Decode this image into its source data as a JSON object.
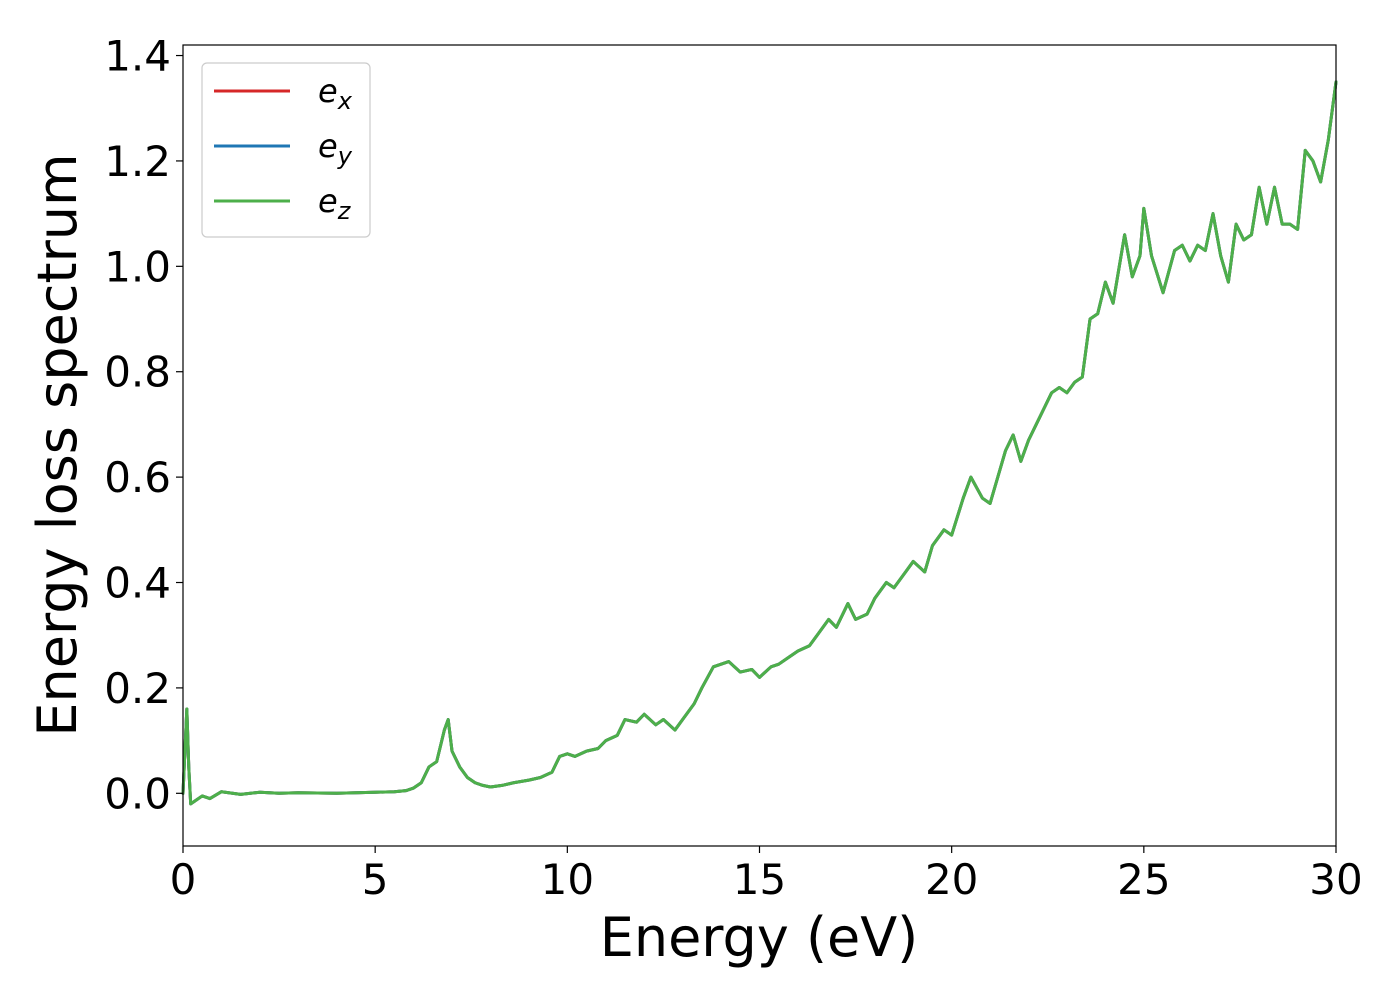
{
  "chart_data": {
    "type": "line",
    "title": "",
    "xlabel": "Energy (eV)",
    "ylabel": "Energy loss spectrum",
    "xlim": [
      0,
      30
    ],
    "ylim": [
      -0.1,
      1.42
    ],
    "xticks": [
      0,
      5,
      10,
      15,
      20,
      25,
      30
    ],
    "xtick_labels": [
      "0",
      "5",
      "10",
      "15",
      "20",
      "25",
      "30"
    ],
    "yticks": [
      0.0,
      0.2,
      0.4,
      0.6,
      0.8,
      1.0,
      1.2,
      1.4
    ],
    "ytick_labels": [
      "0.0",
      "0.2",
      "0.4",
      "0.6",
      "0.8",
      "1.0",
      "1.2",
      "1.4"
    ],
    "grid": false,
    "legend_position": "top-left",
    "x": [
      0.0,
      0.1,
      0.15,
      0.2,
      0.3,
      0.5,
      0.7,
      1.0,
      1.5,
      2.0,
      2.5,
      3.0,
      4.0,
      5.0,
      5.5,
      5.8,
      6.0,
      6.2,
      6.4,
      6.6,
      6.8,
      6.9,
      7.0,
      7.2,
      7.4,
      7.6,
      7.8,
      8.0,
      8.3,
      8.6,
      9.0,
      9.3,
      9.6,
      9.8,
      10.0,
      10.2,
      10.5,
      10.8,
      11.0,
      11.3,
      11.5,
      11.8,
      12.0,
      12.3,
      12.5,
      12.8,
      13.0,
      13.3,
      13.5,
      13.8,
      14.0,
      14.2,
      14.5,
      14.8,
      15.0,
      15.3,
      15.5,
      15.8,
      16.0,
      16.3,
      16.5,
      16.8,
      17.0,
      17.3,
      17.5,
      17.8,
      18.0,
      18.3,
      18.5,
      18.8,
      19.0,
      19.3,
      19.5,
      19.8,
      20.0,
      20.3,
      20.5,
      20.8,
      21.0,
      21.2,
      21.4,
      21.6,
      21.8,
      22.0,
      22.2,
      22.4,
      22.6,
      22.8,
      23.0,
      23.2,
      23.4,
      23.6,
      23.8,
      24.0,
      24.2,
      24.5,
      24.7,
      24.9,
      25.0,
      25.2,
      25.5,
      25.8,
      26.0,
      26.2,
      26.4,
      26.6,
      26.8,
      27.0,
      27.2,
      27.4,
      27.6,
      27.8,
      28.0,
      28.2,
      28.4,
      28.6,
      28.8,
      29.0,
      29.2,
      29.4,
      29.6,
      29.8,
      30.0
    ],
    "series": [
      {
        "name": "e_x",
        "color": "#d62728",
        "values": [
          0.0,
          0.16,
          0.05,
          -0.02,
          -0.015,
          -0.005,
          -0.01,
          0.003,
          -0.002,
          0.002,
          0.0,
          0.001,
          0.0,
          0.002,
          0.003,
          0.005,
          0.01,
          0.02,
          0.05,
          0.06,
          0.12,
          0.14,
          0.08,
          0.05,
          0.03,
          0.02,
          0.015,
          0.012,
          0.015,
          0.02,
          0.025,
          0.03,
          0.04,
          0.07,
          0.075,
          0.07,
          0.08,
          0.085,
          0.1,
          0.11,
          0.14,
          0.135,
          0.15,
          0.13,
          0.14,
          0.12,
          0.14,
          0.17,
          0.2,
          0.24,
          0.245,
          0.25,
          0.23,
          0.235,
          0.22,
          0.24,
          0.245,
          0.26,
          0.27,
          0.28,
          0.3,
          0.33,
          0.315,
          0.36,
          0.33,
          0.34,
          0.37,
          0.4,
          0.39,
          0.42,
          0.44,
          0.42,
          0.47,
          0.5,
          0.49,
          0.56,
          0.6,
          0.56,
          0.55,
          0.6,
          0.65,
          0.68,
          0.63,
          0.67,
          0.7,
          0.73,
          0.76,
          0.77,
          0.76,
          0.78,
          0.79,
          0.9,
          0.91,
          0.97,
          0.93,
          1.06,
          0.98,
          1.02,
          1.11,
          1.02,
          0.95,
          1.03,
          1.04,
          1.01,
          1.04,
          1.03,
          1.1,
          1.02,
          0.97,
          1.08,
          1.05,
          1.06,
          1.15,
          1.08,
          1.15,
          1.08,
          1.08,
          1.07,
          1.22,
          1.2,
          1.16,
          1.24,
          1.35
        ]
      },
      {
        "name": "e_y",
        "color": "#1f77b4",
        "values": [
          0.0,
          0.16,
          0.05,
          -0.02,
          -0.015,
          -0.005,
          -0.01,
          0.003,
          -0.002,
          0.002,
          0.0,
          0.001,
          0.0,
          0.002,
          0.003,
          0.005,
          0.01,
          0.02,
          0.05,
          0.06,
          0.12,
          0.14,
          0.08,
          0.05,
          0.03,
          0.02,
          0.015,
          0.012,
          0.015,
          0.02,
          0.025,
          0.03,
          0.04,
          0.07,
          0.075,
          0.07,
          0.08,
          0.085,
          0.1,
          0.11,
          0.14,
          0.135,
          0.15,
          0.13,
          0.14,
          0.12,
          0.14,
          0.17,
          0.2,
          0.24,
          0.245,
          0.25,
          0.23,
          0.235,
          0.22,
          0.24,
          0.245,
          0.26,
          0.27,
          0.28,
          0.3,
          0.33,
          0.315,
          0.36,
          0.33,
          0.34,
          0.37,
          0.4,
          0.39,
          0.42,
          0.44,
          0.42,
          0.47,
          0.5,
          0.49,
          0.56,
          0.6,
          0.56,
          0.55,
          0.6,
          0.65,
          0.68,
          0.63,
          0.67,
          0.7,
          0.73,
          0.76,
          0.77,
          0.76,
          0.78,
          0.79,
          0.9,
          0.91,
          0.97,
          0.93,
          1.06,
          0.98,
          1.02,
          1.11,
          1.02,
          0.95,
          1.03,
          1.04,
          1.01,
          1.04,
          1.03,
          1.1,
          1.02,
          0.97,
          1.08,
          1.05,
          1.06,
          1.15,
          1.08,
          1.15,
          1.08,
          1.08,
          1.07,
          1.22,
          1.2,
          1.16,
          1.24,
          1.35
        ]
      },
      {
        "name": "e_z",
        "color": "#4daf4a",
        "values": [
          0.0,
          0.16,
          0.05,
          -0.02,
          -0.015,
          -0.005,
          -0.01,
          0.003,
          -0.002,
          0.002,
          0.0,
          0.001,
          0.0,
          0.002,
          0.003,
          0.005,
          0.01,
          0.02,
          0.05,
          0.06,
          0.12,
          0.14,
          0.08,
          0.05,
          0.03,
          0.02,
          0.015,
          0.012,
          0.015,
          0.02,
          0.025,
          0.03,
          0.04,
          0.07,
          0.075,
          0.07,
          0.08,
          0.085,
          0.1,
          0.11,
          0.14,
          0.135,
          0.15,
          0.13,
          0.14,
          0.12,
          0.14,
          0.17,
          0.2,
          0.24,
          0.245,
          0.25,
          0.23,
          0.235,
          0.22,
          0.24,
          0.245,
          0.26,
          0.27,
          0.28,
          0.3,
          0.33,
          0.315,
          0.36,
          0.33,
          0.34,
          0.37,
          0.4,
          0.39,
          0.42,
          0.44,
          0.42,
          0.47,
          0.5,
          0.49,
          0.56,
          0.6,
          0.56,
          0.55,
          0.6,
          0.65,
          0.68,
          0.63,
          0.67,
          0.7,
          0.73,
          0.76,
          0.77,
          0.76,
          0.78,
          0.79,
          0.9,
          0.91,
          0.97,
          0.93,
          1.06,
          0.98,
          1.02,
          1.11,
          1.02,
          0.95,
          1.03,
          1.04,
          1.01,
          1.04,
          1.03,
          1.1,
          1.02,
          0.97,
          1.08,
          1.05,
          1.06,
          1.15,
          1.08,
          1.15,
          1.08,
          1.08,
          1.07,
          1.22,
          1.2,
          1.16,
          1.24,
          1.35
        ]
      }
    ],
    "legend": [
      {
        "base": "e",
        "sub": "x",
        "color": "#d62728"
      },
      {
        "base": "e",
        "sub": "y",
        "color": "#1f77b4"
      },
      {
        "base": "e",
        "sub": "z",
        "color": "#4daf4a"
      }
    ]
  }
}
